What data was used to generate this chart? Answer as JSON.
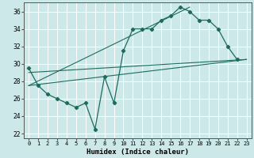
{
  "xlabel": "Humidex (Indice chaleur)",
  "xlim": [
    -0.5,
    23.5
  ],
  "ylim": [
    21.5,
    37.0
  ],
  "yticks": [
    22,
    24,
    26,
    28,
    30,
    32,
    34,
    36
  ],
  "xticks": [
    0,
    1,
    2,
    3,
    4,
    5,
    6,
    7,
    8,
    9,
    10,
    11,
    12,
    13,
    14,
    15,
    16,
    17,
    18,
    19,
    20,
    21,
    22,
    23
  ],
  "bg_color": "#cce8e8",
  "grid_color": "#ffffff",
  "line_color": "#1e6b5e",
  "main_x": [
    0,
    1,
    2,
    3,
    4,
    5,
    6,
    7,
    8,
    9,
    10,
    11,
    12,
    13,
    14,
    15,
    16,
    17,
    18,
    19,
    20,
    21,
    22
  ],
  "main_y": [
    29.5,
    27.5,
    26.5,
    26.0,
    25.5,
    25.0,
    25.5,
    22.5,
    28.5,
    25.5,
    31.5,
    34.0,
    34.0,
    34.0,
    35.0,
    35.5,
    36.5,
    36.0,
    35.0,
    35.0,
    34.0,
    32.0,
    30.5
  ],
  "trend_lines": [
    {
      "x0": 0,
      "y0": 27.5,
      "x1": 23,
      "y1": 30.5
    },
    {
      "x0": 0,
      "y0": 27.5,
      "x1": 17,
      "y1": 36.5
    },
    {
      "x0": 0,
      "y0": 29.0,
      "x1": 23,
      "y1": 30.5
    }
  ]
}
